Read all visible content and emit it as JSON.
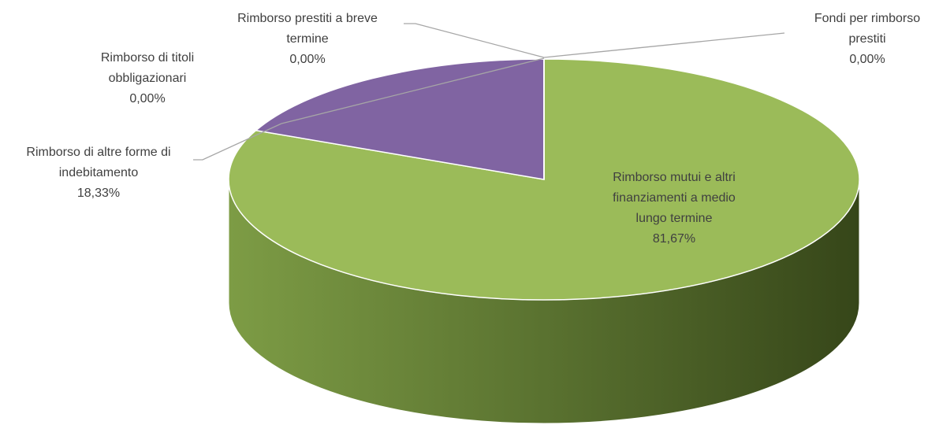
{
  "chart_data": {
    "type": "pie3d",
    "categories": [
      "Rimborso mutui e altri finanziamenti a medio lungo termine",
      "Rimborso di altre forme di indebitamento",
      "Rimborso di titoli obbligazionari",
      "Rimborso prestiti a breve termine",
      "Fondi per rimborso prestiti"
    ],
    "values": [
      81.67,
      18.33,
      0,
      0,
      0
    ],
    "value_labels": [
      "81,67%",
      "18,33%",
      "0,00%",
      "0,00%",
      "0,00%"
    ],
    "colors": [
      "#9bbb59",
      "#8064a2",
      "#4bacc6",
      "#f79646",
      "#2c4d75"
    ]
  }
}
